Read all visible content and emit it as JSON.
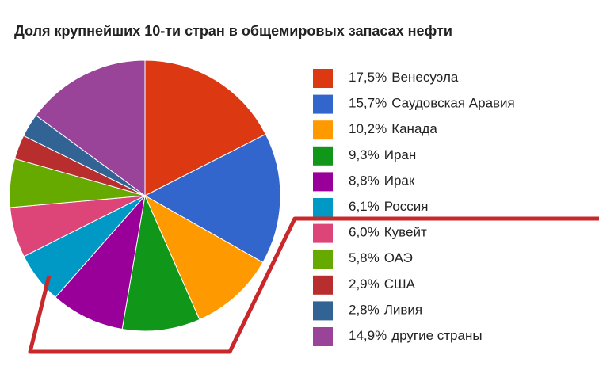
{
  "chart_data": {
    "type": "pie",
    "title": "Доля крупнейших 10-ти стран в общемировых запасах нефти",
    "categories": [
      "Венесуэла",
      "Саудовская Аравия",
      "Канада",
      "Иран",
      "Ирак",
      "Россия",
      "Кувейт",
      "ОАЭ",
      "США",
      "Ливия",
      "другие страны"
    ],
    "values": [
      17.5,
      15.7,
      10.2,
      9.3,
      8.8,
      6.1,
      6.0,
      5.8,
      2.9,
      2.8,
      14.9
    ],
    "value_labels": [
      "17,5%",
      "15,7%",
      "10,2%",
      "9,3%",
      "8,8%",
      "6,1%",
      "6,0%",
      "5,8%",
      "2,9%",
      "2,8%",
      "14,9%"
    ],
    "colors": [
      "#dc3912",
      "#3366cc",
      "#ff9900",
      "#109618",
      "#990099",
      "#0099c6",
      "#dd4477",
      "#66aa00",
      "#b82e2e",
      "#316395",
      "#994499"
    ],
    "legend": "right"
  }
}
